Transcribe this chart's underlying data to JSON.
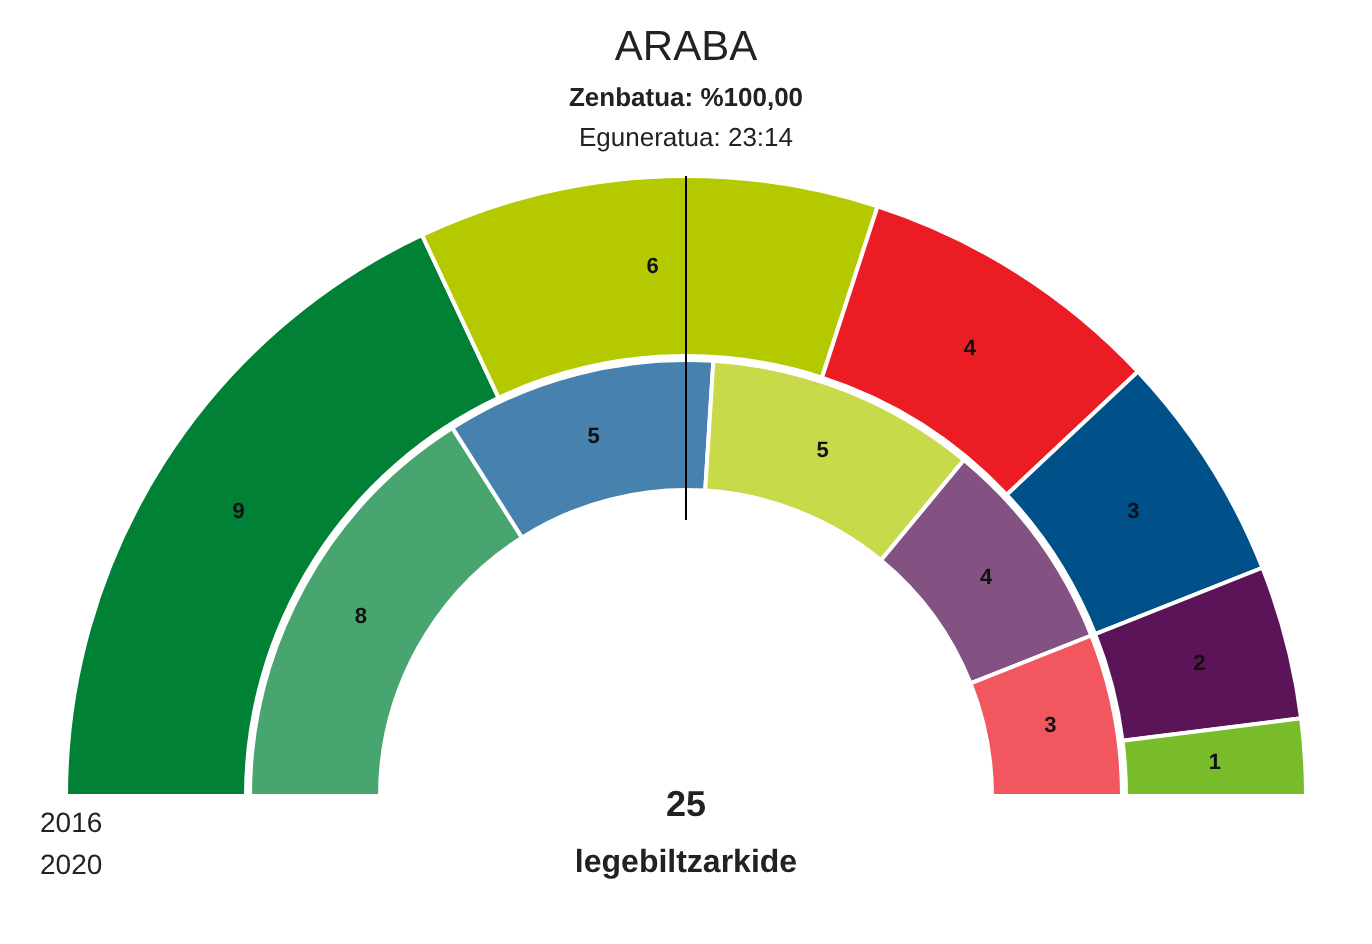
{
  "chart_data": {
    "type": "donut",
    "title": "ARABA",
    "subtitle": [
      "Zenbatua: %100,00",
      "Eguneratua: 23:14"
    ],
    "series": [
      {
        "values": [
          9,
          6,
          4,
          3,
          2,
          1
        ],
        "colors": [
          "#008136",
          "#b5c900",
          "#ec1c24",
          "#00508a",
          "#5c1459",
          "#78bc2a"
        ]
      },
      {
        "values": [
          8,
          5,
          5,
          4,
          3
        ],
        "colors": [
          "#48a56f",
          "#4682ad",
          "#c8d94a",
          "#845183",
          "#f2575f"
        ]
      }
    ],
    "annotations": [
      "25",
      "legebiltzarkide",
      "2016",
      "2020"
    ],
    "data_labels": true
  }
}
